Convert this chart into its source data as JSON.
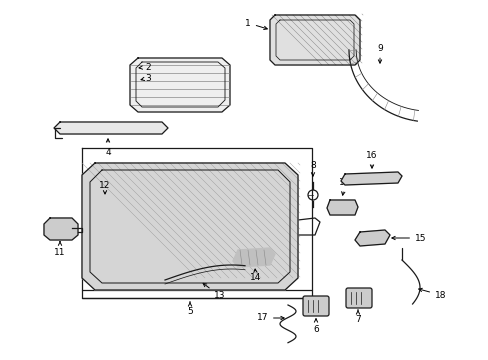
{
  "bg": "#ffffff",
  "lc": "#1a1a1a",
  "lw": 0.9,
  "fig_w": 4.89,
  "fig_h": 3.6,
  "dpi": 100,
  "label_fs": 6.5
}
